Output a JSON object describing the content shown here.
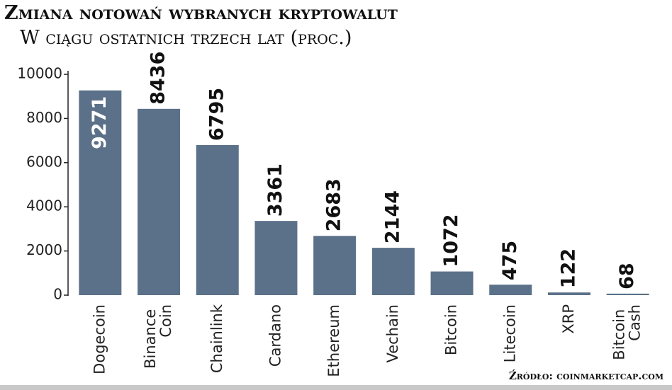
{
  "chart_data": {
    "type": "bar",
    "title": "Zmiana notowań wybranych kryptowalut",
    "subtitle": "W ciągu ostatnich trzech lat (proc.)",
    "source": "Źródło: coinmarketcap.com",
    "categories": [
      "Dogecoin",
      "Binance Coin",
      "Chainlink",
      "Cardano",
      "Ethereum",
      "Vechain",
      "Bitcoin",
      "Litecoin",
      "XRP",
      "Bitcoin Cash"
    ],
    "values": [
      9271,
      8436,
      6795,
      3361,
      2683,
      2144,
      1072,
      475,
      122,
      68
    ],
    "color": "#5b7189",
    "ylim": [
      0,
      10000
    ],
    "yticks": [
      0,
      2000,
      4000,
      6000,
      8000,
      10000
    ],
    "grid": false
  }
}
